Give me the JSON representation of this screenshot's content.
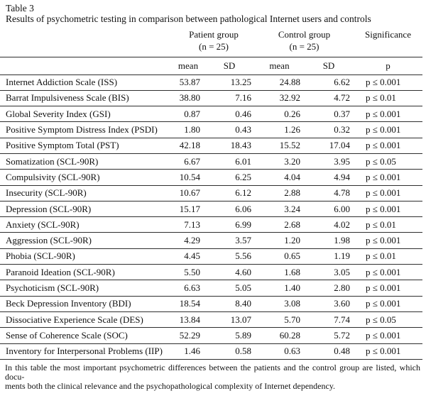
{
  "page": {
    "title": "Table 3",
    "subtitle": "Results of psychometric testing in comparison between pathological Internet users and controls"
  },
  "table": {
    "group_headers": {
      "patient_line1": "Patient group",
      "patient_line2": "(n = 25)",
      "control_line1": "Control group",
      "control_line2": "(n = 25)",
      "significance": "Significance"
    },
    "col_headers": {
      "patient_mean": "mean",
      "patient_sd": "SD",
      "control_mean": "mean",
      "control_sd": "SD",
      "p": "p"
    },
    "rows": [
      {
        "label": "Internet Addiction Scale (ISS)",
        "patient_mean": "53.87",
        "patient_sd": "13.25",
        "control_mean": "24.88",
        "control_sd": "6.62",
        "significance": "p ≤ 0.001"
      },
      {
        "label": "Barrat Impulsiveness Scale (BIS)",
        "patient_mean": "38.80",
        "patient_sd": "7.16",
        "control_mean": "32.92",
        "control_sd": "4.72",
        "significance": "p ≤ 0.01"
      },
      {
        "label": "Global Severity Index (GSI)",
        "patient_mean": "0.87",
        "patient_sd": "0.46",
        "control_mean": "0.26",
        "control_sd": "0.37",
        "significance": "p ≤ 0.001"
      },
      {
        "label": "Positive Symptom Distress Index (PSDI)",
        "patient_mean": "1.80",
        "patient_sd": "0.43",
        "control_mean": "1.26",
        "control_sd": "0.32",
        "significance": "p ≤ 0.001"
      },
      {
        "label": "Positive Symptom Total (PST)",
        "patient_mean": "42.18",
        "patient_sd": "18.43",
        "control_mean": "15.52",
        "control_sd": "17.04",
        "significance": "p ≤ 0.001"
      },
      {
        "label": "Somatization (SCL-90R)",
        "patient_mean": "6.67",
        "patient_sd": "6.01",
        "control_mean": "3.20",
        "control_sd": "3.95",
        "significance": "p ≤ 0.05"
      },
      {
        "label": "Compulsivity (SCL-90R)",
        "patient_mean": "10.54",
        "patient_sd": "6.25",
        "control_mean": "4.04",
        "control_sd": "4.94",
        "significance": "p ≤ 0.001"
      },
      {
        "label": "Insecurity (SCL-90R)",
        "patient_mean": "10.67",
        "patient_sd": "6.12",
        "control_mean": "2.88",
        "control_sd": "4.78",
        "significance": "p ≤ 0.001"
      },
      {
        "label": "Depression (SCL-90R)",
        "patient_mean": "15.17",
        "patient_sd": "6.06",
        "control_mean": "3.24",
        "control_sd": "6.00",
        "significance": "p ≤ 0.001"
      },
      {
        "label": "Anxiety (SCL-90R)",
        "patient_mean": "7.13",
        "patient_sd": "6.99",
        "control_mean": "2.68",
        "control_sd": "4.02",
        "significance": "p ≤ 0.01"
      },
      {
        "label": "Aggression (SCL-90R)",
        "patient_mean": "4.29",
        "patient_sd": "3.57",
        "control_mean": "1.20",
        "control_sd": "1.98",
        "significance": "p ≤ 0.001"
      },
      {
        "label": "Phobia (SCL-90R)",
        "patient_mean": "4.45",
        "patient_sd": "5.56",
        "control_mean": "0.65",
        "control_sd": "1.19",
        "significance": "p ≤ 0.01"
      },
      {
        "label": "Paranoid Ideation (SCL-90R)",
        "patient_mean": "5.50",
        "patient_sd": "4.60",
        "control_mean": "1.68",
        "control_sd": "3.05",
        "significance": "p ≤ 0.001"
      },
      {
        "label": "Psychoticism (SCL-90R)",
        "patient_mean": "6.63",
        "patient_sd": "5.05",
        "control_mean": "1.40",
        "control_sd": "2.80",
        "significance": "p ≤ 0.001"
      },
      {
        "label": "Beck Depression Inventory (BDI)",
        "patient_mean": "18.54",
        "patient_sd": "8.40",
        "control_mean": "3.08",
        "control_sd": "3.60",
        "significance": "p ≤ 0.001"
      },
      {
        "label": "Dissociative Experience Scale (DES)",
        "patient_mean": "13.84",
        "patient_sd": "13.07",
        "control_mean": "5.70",
        "control_sd": "7.74",
        "significance": "p ≤ 0.05"
      },
      {
        "label": "Sense of Coherence Scale (SOC)",
        "patient_mean": "52.29",
        "patient_sd": "5.89",
        "control_mean": "60.28",
        "control_sd": "5.72",
        "significance": "p ≤ 0.001"
      },
      {
        "label": "Inventory for Interpersonal Problems (IIP)",
        "patient_mean": "1.46",
        "patient_sd": "0.58",
        "control_mean": "0.63",
        "control_sd": "0.48",
        "significance": "p ≤ 0.001"
      }
    ]
  },
  "footnote": {
    "line1": "In this table the most important psychometric differences between the patients and the control group are listed, which docu-",
    "line2": "ments both the clinical relevance and the psychopathological complexity of Internet dependency."
  },
  "colors": {
    "background": "#ffffff",
    "text": "#111111",
    "rule": "#2e2e2e"
  }
}
